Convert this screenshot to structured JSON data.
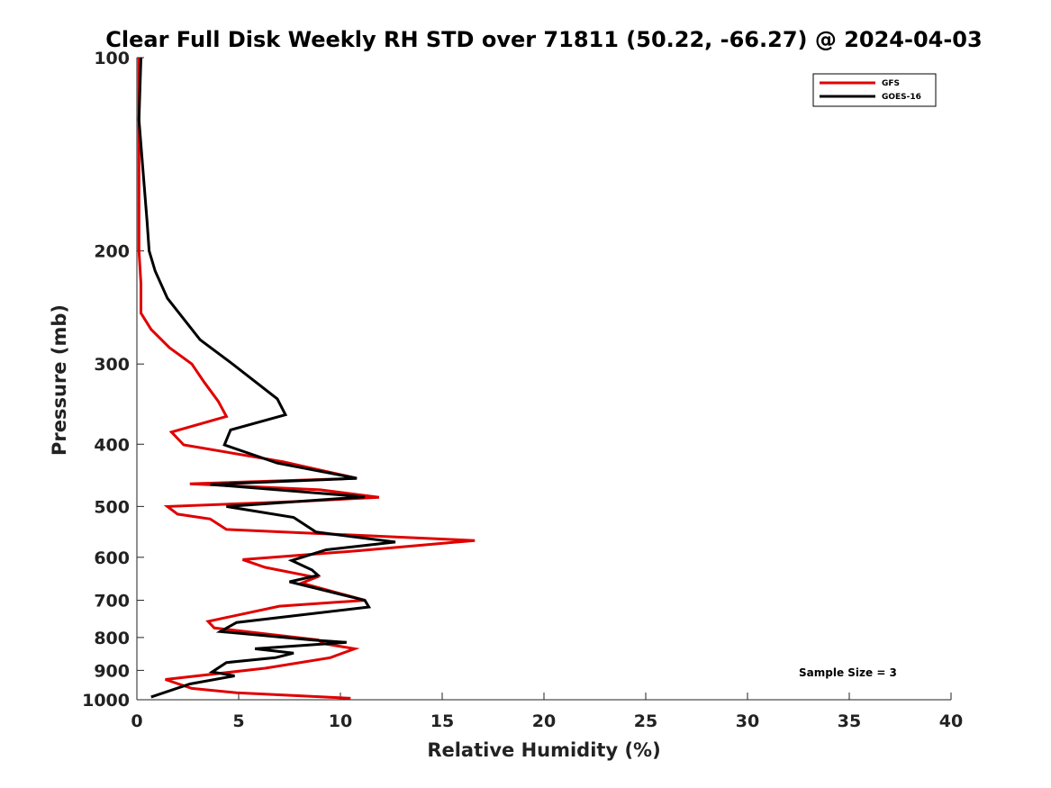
{
  "chart_data": {
    "type": "line",
    "title": "Clear Full Disk Weekly RH STD over 71811 (50.22, -66.27) @ 2024-04-03",
    "xlabel": "Relative Humidity (%)",
    "ylabel": "Pressure (mb)",
    "xlim": [
      0,
      40
    ],
    "ylim": [
      1000,
      100
    ],
    "y_scale": "log",
    "y_reversed": true,
    "x_ticks": [
      0,
      5,
      10,
      15,
      20,
      25,
      30,
      35,
      40
    ],
    "y_ticks": [
      100,
      200,
      300,
      400,
      500,
      600,
      700,
      800,
      900,
      1000
    ],
    "grid": false,
    "legend_position": "top-right",
    "annotation": "Sample Size = 3",
    "series": [
      {
        "name": "GFS",
        "color": "#e00000",
        "points": [
          [
            0.1,
            100
          ],
          [
            0.1,
            150
          ],
          [
            0.1,
            200
          ],
          [
            0.2,
            225
          ],
          [
            0.2,
            250
          ],
          [
            0.7,
            265
          ],
          [
            1.6,
            283
          ],
          [
            2.7,
            300
          ],
          [
            3.3,
            320
          ],
          [
            4.0,
            343
          ],
          [
            4.4,
            362
          ],
          [
            1.7,
            383
          ],
          [
            2.3,
            401
          ],
          [
            7.2,
            426
          ],
          [
            10.8,
            452
          ],
          [
            2.6,
            461
          ],
          [
            9.0,
            471
          ],
          [
            11.9,
            484
          ],
          [
            8.0,
            491
          ],
          [
            1.5,
            500
          ],
          [
            2.0,
            514
          ],
          [
            3.6,
            523
          ],
          [
            4.4,
            543
          ],
          [
            16.6,
            565
          ],
          [
            10.9,
            586
          ],
          [
            5.2,
            605
          ],
          [
            6.3,
            622
          ],
          [
            8.8,
            645
          ],
          [
            8.1,
            658
          ],
          [
            11.2,
            700
          ],
          [
            7.0,
            715
          ],
          [
            3.5,
            755
          ],
          [
            3.8,
            773
          ],
          [
            8.9,
            807
          ],
          [
            9.2,
            818
          ],
          [
            10.7,
            833
          ],
          [
            9.5,
            860
          ],
          [
            6.3,
            893
          ],
          [
            1.4,
            930
          ],
          [
            2.7,
            960
          ],
          [
            4.9,
            975
          ],
          [
            10.5,
            995
          ]
        ]
      },
      {
        "name": "GOES-16",
        "color": "#000000",
        "points": [
          [
            0.2,
            100
          ],
          [
            0.1,
            125
          ],
          [
            0.3,
            150
          ],
          [
            0.5,
            180
          ],
          [
            0.6,
            200
          ],
          [
            0.9,
            215
          ],
          [
            1.5,
            237
          ],
          [
            3.1,
            275
          ],
          [
            4.7,
            300
          ],
          [
            6.9,
            340
          ],
          [
            7.3,
            360
          ],
          [
            4.6,
            380
          ],
          [
            4.3,
            401
          ],
          [
            6.9,
            428
          ],
          [
            10.8,
            452
          ],
          [
            3.6,
            462
          ],
          [
            11.2,
            483
          ],
          [
            4.4,
            500
          ],
          [
            7.7,
            520
          ],
          [
            8.8,
            548
          ],
          [
            12.7,
            568
          ],
          [
            9.3,
            584
          ],
          [
            7.6,
            607
          ],
          [
            8.6,
            628
          ],
          [
            8.9,
            640
          ],
          [
            7.5,
            655
          ],
          [
            11.2,
            700
          ],
          [
            11.4,
            717
          ],
          [
            4.9,
            758
          ],
          [
            4.1,
            783
          ],
          [
            8.6,
            807
          ],
          [
            10.3,
            814
          ],
          [
            5.8,
            833
          ],
          [
            7.7,
            846
          ],
          [
            6.8,
            860
          ],
          [
            4.4,
            875
          ],
          [
            3.7,
            905
          ],
          [
            4.8,
            918
          ],
          [
            2.6,
            945
          ],
          [
            0.7,
            990
          ]
        ]
      }
    ]
  }
}
